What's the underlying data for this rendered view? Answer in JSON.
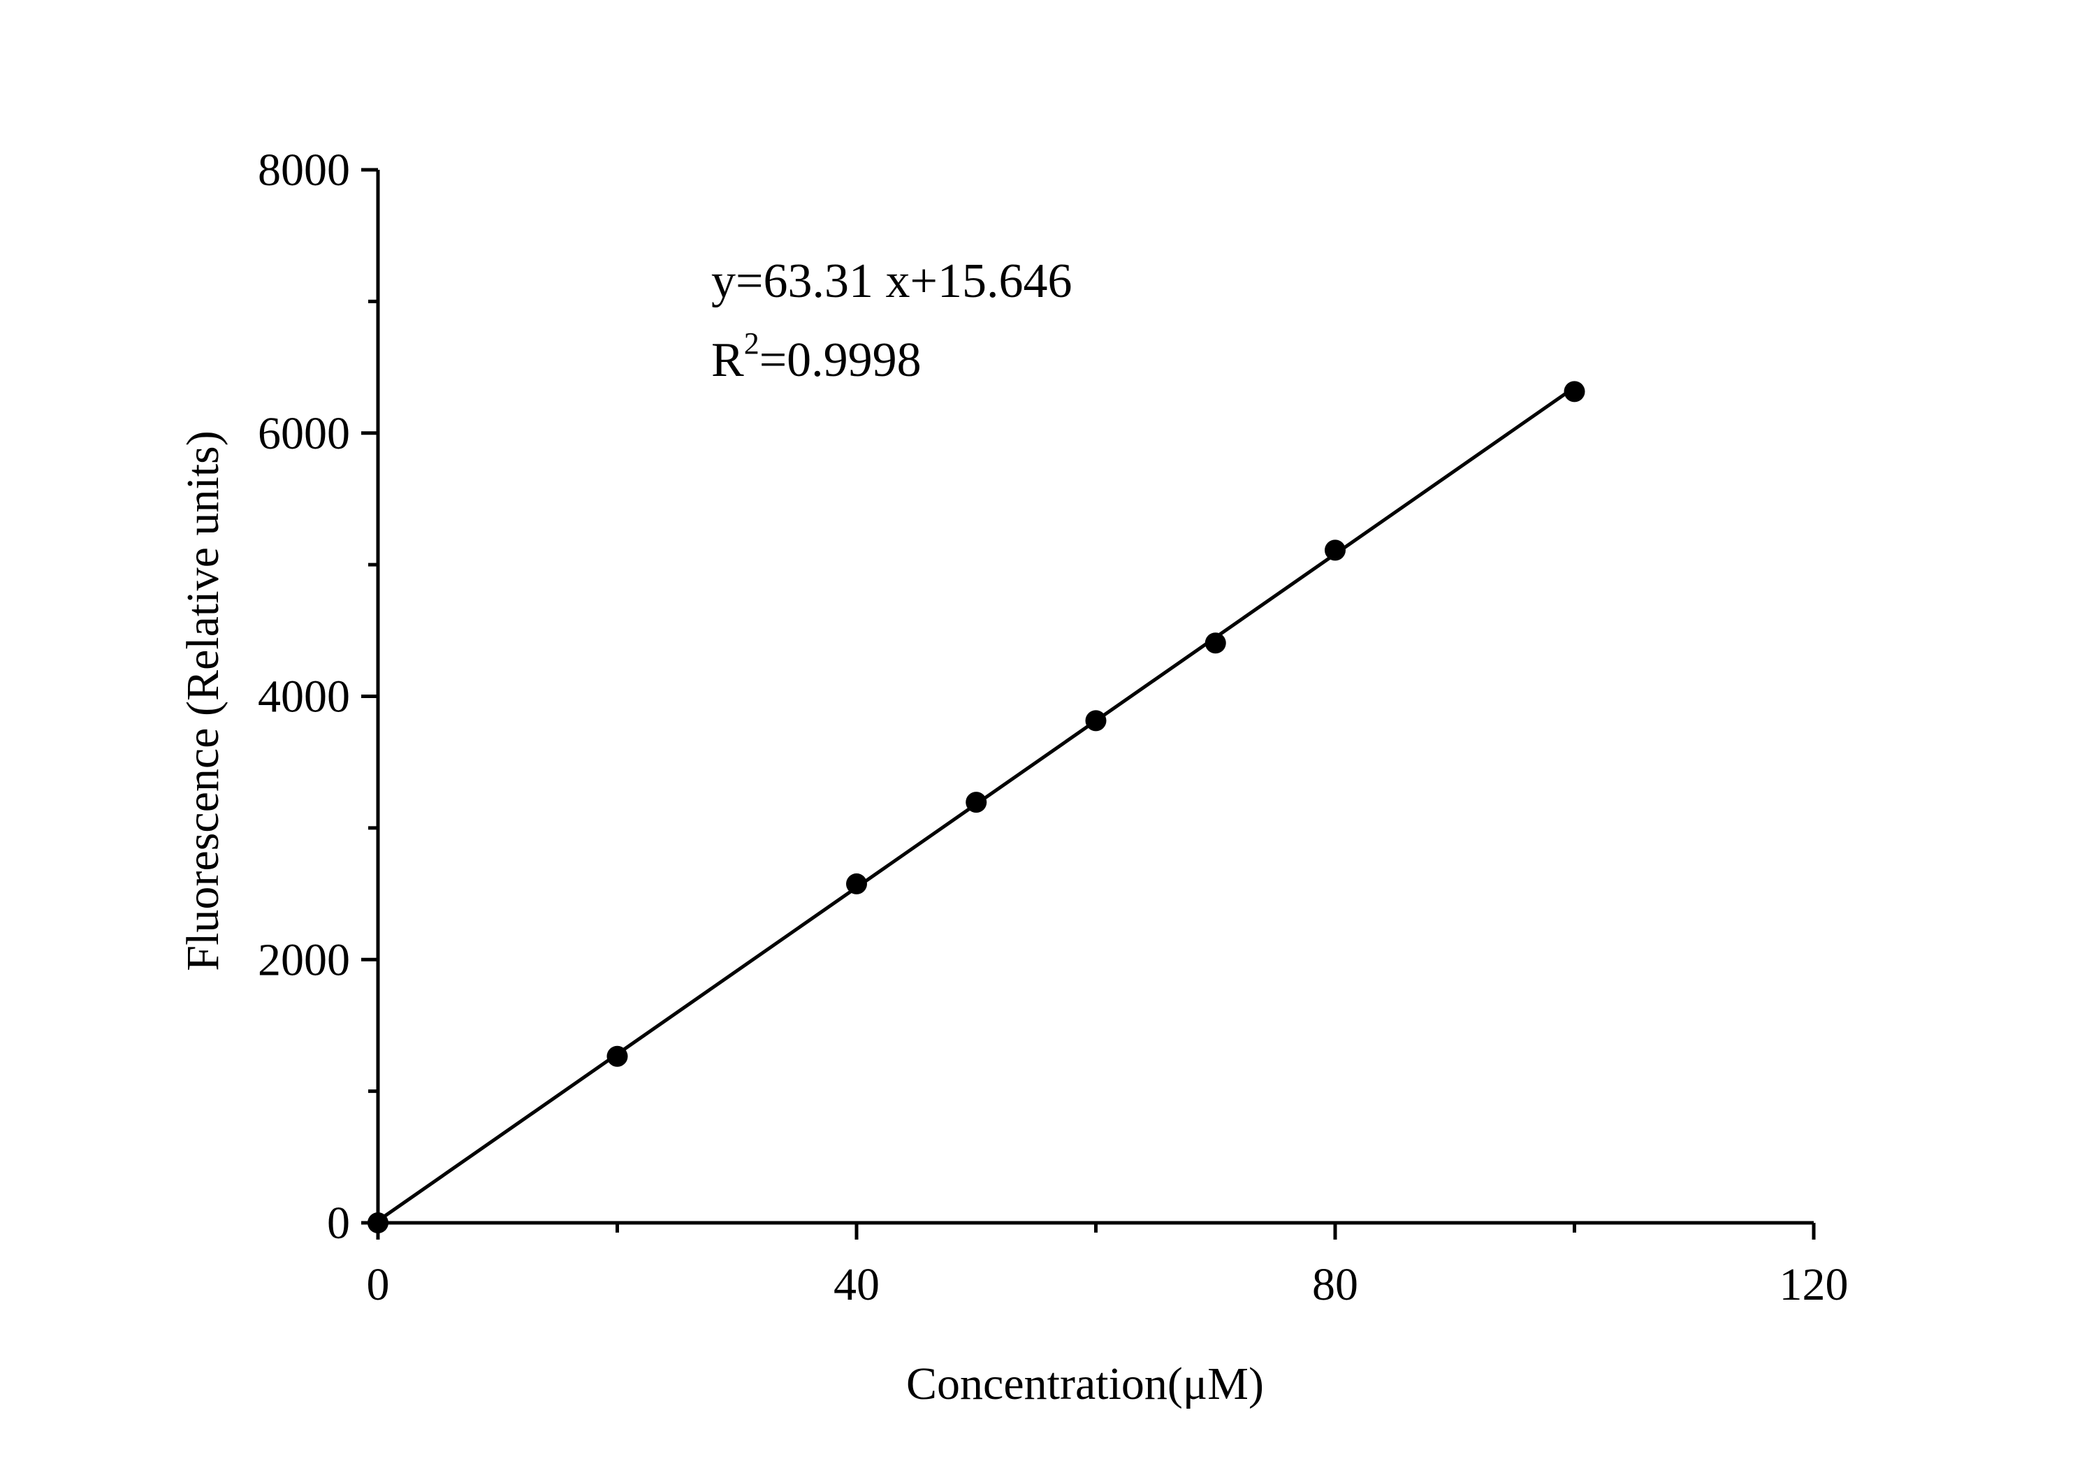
{
  "chart_data": {
    "type": "scatter",
    "title": "",
    "xlabel": "Concentration(μM)",
    "ylabel": "Fluorescence (Relative units)",
    "xlim": [
      0,
      120
    ],
    "ylim": [
      0,
      8000
    ],
    "x_ticks": [
      "0",
      "40",
      "80",
      "120"
    ],
    "y_ticks": [
      "0",
      "2000",
      "4000",
      "6000",
      "8000"
    ],
    "x_minor_ticks": [
      20,
      60,
      100
    ],
    "y_minor_ticks": [
      1000,
      3000,
      5000,
      7000
    ],
    "grid": false,
    "legend": "none",
    "series": [
      {
        "marker_color": "#000000",
        "points": [
          {
            "x": 0,
            "y": 0
          },
          {
            "x": 20,
            "y": 1265
          },
          {
            "x": 40,
            "y": 2575
          },
          {
            "x": 50,
            "y": 3195
          },
          {
            "x": 60,
            "y": 3815
          },
          {
            "x": 70,
            "y": 4405
          },
          {
            "x": 80,
            "y": 5110
          },
          {
            "x": 100,
            "y": 6315
          }
        ]
      }
    ],
    "fit_line": {
      "slope": 63.31,
      "intercept": 15.646,
      "x_range": [
        0,
        100
      ],
      "color": "#000000"
    },
    "annotations": {
      "equation": "y=63.31 x+15.646",
      "r2_prefix": "R",
      "r2_exponent": "2",
      "r2_value": "=0.9998"
    }
  }
}
